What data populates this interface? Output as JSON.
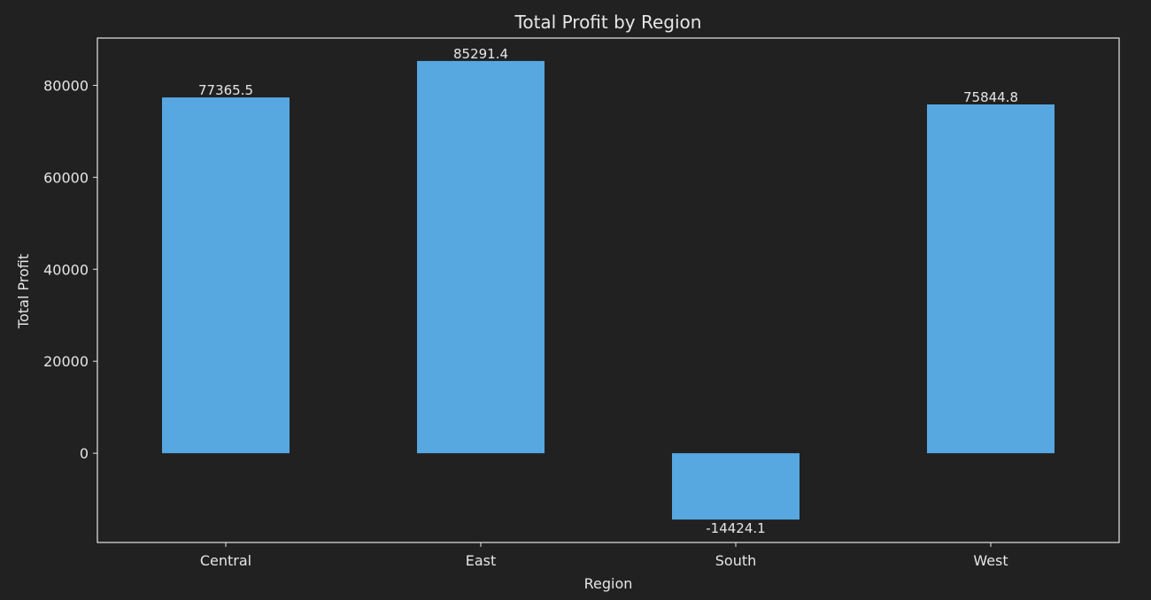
{
  "chart_data": {
    "type": "bar",
    "title": "Total Profit by Region",
    "xlabel": "Region",
    "ylabel": "Total Profit",
    "categories": [
      "Central",
      "East",
      "South",
      "West"
    ],
    "values": [
      77365.5,
      85291.4,
      -14424.1,
      75844.8
    ],
    "value_labels": [
      "77365.5",
      "85291.4",
      "-14424.1",
      "75844.8"
    ],
    "yticks": [
      0,
      20000,
      40000,
      60000,
      80000
    ],
    "ytick_labels": [
      "0",
      "20000",
      "40000",
      "60000",
      "80000"
    ],
    "ylim": [
      -19410,
      90278
    ],
    "grid": false,
    "legend": "none"
  },
  "colors": {
    "background": "#212121",
    "bar": "#57a8e1",
    "text": "#e6e6e6",
    "axes": "#e6e6e6"
  }
}
